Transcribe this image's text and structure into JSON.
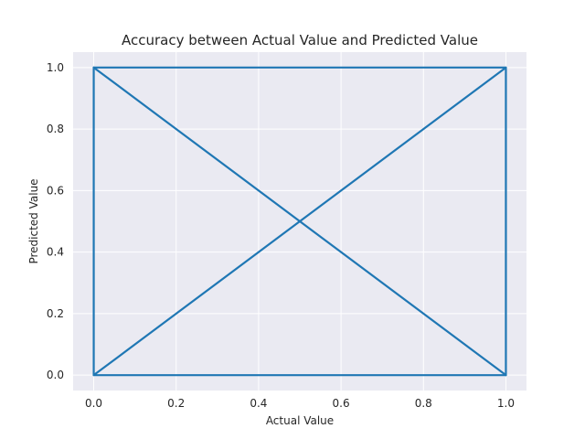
{
  "chart_data": {
    "type": "line",
    "title": "Accuracy between Actual Value and Predicted Value",
    "xlabel": "Actual Value",
    "ylabel": "Predicted Value",
    "xlim": [
      -0.05,
      1.05
    ],
    "ylim": [
      -0.05,
      1.05
    ],
    "xticks": [
      0.0,
      0.2,
      0.4,
      0.6,
      0.8,
      1.0
    ],
    "yticks": [
      0.0,
      0.2,
      0.4,
      0.6,
      0.8,
      1.0
    ],
    "tick_format_decimals": 1,
    "grid": true,
    "series": [
      {
        "color": "#1f77b4",
        "x": [
          0,
          0,
          1,
          1,
          0,
          1,
          0
        ],
        "y": [
          0,
          1,
          1,
          0,
          0,
          1,
          0
        ]
      },
      {
        "color": "#1f77b4",
        "x": [
          0,
          1
        ],
        "y": [
          1,
          0
        ]
      }
    ],
    "colors": {
      "plot_background": "#eaeaf2",
      "grid": "#ffffff",
      "text": "#262626"
    }
  }
}
